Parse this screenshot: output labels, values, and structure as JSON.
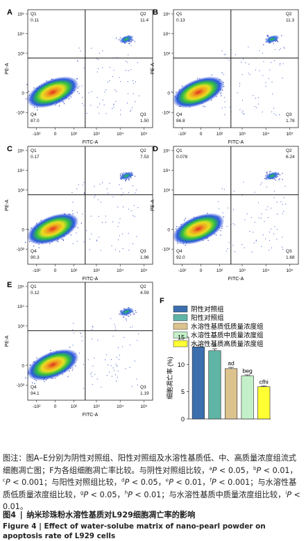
{
  "flow_panels": [
    {
      "letter": "A",
      "q1": "0.11",
      "q2": "11.4",
      "q3": "1.50",
      "q4": "87.0"
    },
    {
      "letter": "B",
      "q1": "0.13",
      "q2": "11.3",
      "q3": "1.78",
      "q4": "86.8"
    },
    {
      "letter": "C",
      "q1": "0.17",
      "q2": "7.53",
      "q3": "1.96",
      "q4": "90.3"
    },
    {
      "letter": "D",
      "q1": "0.078",
      "q2": "6.24",
      "q3": "1.68",
      "q4": "92.0"
    },
    {
      "letter": "E",
      "q1": "0.12",
      "q2": "4.59",
      "q3": "1.19",
      "q4": "94.1"
    }
  ],
  "flow_axes": {
    "x_label": "FITC-A",
    "y_label": "PE-A",
    "q_labels": [
      "Q1",
      "Q2",
      "Q3",
      "Q4"
    ],
    "y_ticks": [
      "10⁵",
      "10⁴",
      "10³",
      "0",
      "-10³"
    ],
    "x_ticks": [
      "-10²",
      "0",
      "10²",
      "10³",
      "10⁴",
      "10⁵"
    ]
  },
  "chart_data": {
    "type": "bar",
    "panel_letter": "F",
    "ylabel": "细胞凋亡率 (%)",
    "xlabel": "",
    "ylim": [
      0,
      15
    ],
    "yticks": [
      "0",
      "5",
      "10",
      "15"
    ],
    "categories": [
      "阴性对照组",
      "阳性对照组",
      "水溶性基质低质量浓度组",
      "水溶性基质中质量浓度组",
      "水溶性基质高质量浓度组"
    ],
    "values": [
      13.2,
      12.5,
      9.2,
      7.9,
      5.9
    ],
    "errors": [
      0.35,
      0.35,
      0.25,
      0.15,
      0.15
    ],
    "annotations": [
      "",
      "a",
      "ad",
      "beg",
      "cfhi"
    ],
    "colors": [
      "#3b6fae",
      "#5fb5a6",
      "#dcc38e",
      "#c3f0c8",
      "#ffff33"
    ],
    "legend_position": "top"
  },
  "caption": {
    "note_label": "图注：",
    "note_1": "图A–E分别为阴性对照组、阳性对照组及水溶性基质低、中、高质量浓度组流式细胞凋亡图；F为各组细胞凋亡率比较。与阴性对照组比较，",
    "p_letter": "P",
    "sup_a": "a",
    "lt_005": " < 0.05，",
    "sup_b": "b",
    "lt_001": " < 0.01，",
    "sup_c": "c",
    "lt_0001": " < 0.001；与阳性对照组比较，",
    "sup_d": "d",
    "d_val": " < 0.05，",
    "sup_e": "e",
    "e_val": " < 0.01，",
    "sup_f": "f",
    "f_val": " < 0.001；与水溶性基质低质量浓度组比较，",
    "sup_g": "g",
    "g_val": " < 0.05，",
    "sup_h": "h",
    "h_val": " < 0.01；与水溶性基质中质量浓度组比较，",
    "sup_i": "i",
    "i_val": " < 0.01。",
    "title_zh": "图4 | 纳米珍珠粉水溶性基质对L929细胞凋亡率的影响",
    "title_en": "Figure 4 | Effect of water-solube matrix of nano-pearl powder on apoptosis rate of L929 cells"
  }
}
